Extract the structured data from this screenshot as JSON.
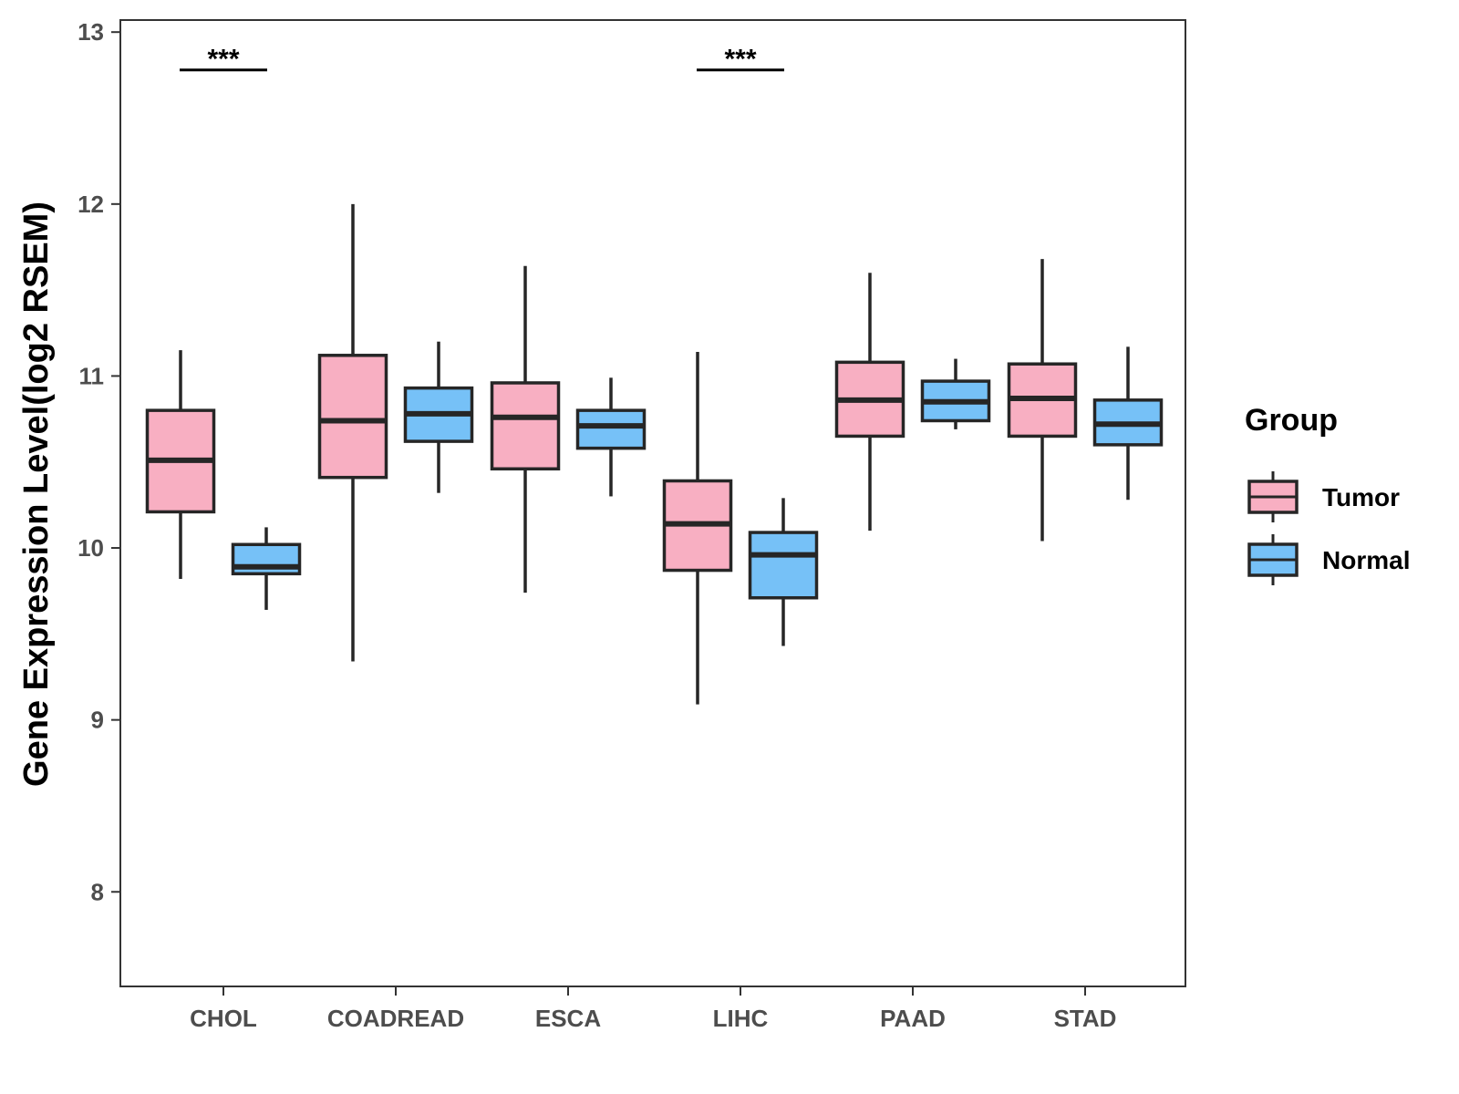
{
  "chart_data": {
    "type": "boxplot",
    "title": "",
    "xlabel": "",
    "ylabel": "Gene Expression Level(log2 RSEM)",
    "ylim": [
      7.45,
      13.07
    ],
    "yticks": [
      8,
      9,
      10,
      11,
      12,
      13
    ],
    "grid": false,
    "legend_position": "right",
    "categories": [
      "CHOL",
      "COADREAD",
      "ESCA",
      "LIHC",
      "PAAD",
      "STAD"
    ],
    "series": [
      {
        "name": "Tumor",
        "color": "#f8afc2",
        "boxes": [
          {
            "min": 9.82,
            "q1": 10.21,
            "median": 10.51,
            "q3": 10.8,
            "max": 11.15
          },
          {
            "min": 9.34,
            "q1": 10.41,
            "median": 10.74,
            "q3": 11.12,
            "max": 12.0
          },
          {
            "min": 9.74,
            "q1": 10.46,
            "median": 10.76,
            "q3": 10.96,
            "max": 11.64
          },
          {
            "min": 9.09,
            "q1": 9.87,
            "median": 10.14,
            "q3": 10.39,
            "max": 11.14
          },
          {
            "min": 10.1,
            "q1": 10.65,
            "median": 10.86,
            "q3": 11.08,
            "max": 11.6
          },
          {
            "min": 10.04,
            "q1": 10.65,
            "median": 10.87,
            "q3": 11.07,
            "max": 11.68
          }
        ]
      },
      {
        "name": "Normal",
        "color": "#76c1f7",
        "boxes": [
          {
            "min": 9.64,
            "q1": 9.85,
            "median": 9.89,
            "q3": 10.02,
            "max": 10.12
          },
          {
            "min": 10.32,
            "q1": 10.62,
            "median": 10.78,
            "q3": 10.93,
            "max": 11.2
          },
          {
            "min": 10.3,
            "q1": 10.58,
            "median": 10.71,
            "q3": 10.8,
            "max": 10.99
          },
          {
            "min": 9.43,
            "q1": 9.71,
            "median": 9.96,
            "q3": 10.09,
            "max": 10.29
          },
          {
            "min": 10.69,
            "q1": 10.74,
            "median": 10.85,
            "q3": 10.97,
            "max": 11.1
          },
          {
            "min": 10.28,
            "q1": 10.6,
            "median": 10.72,
            "q3": 10.86,
            "max": 11.17
          }
        ]
      }
    ],
    "significance": [
      {
        "category": "CHOL",
        "label": "***",
        "y": 12.78
      },
      {
        "category": "LIHC",
        "label": "***",
        "y": 12.78
      }
    ],
    "legend": {
      "title": "Group",
      "items": [
        "Tumor",
        "Normal"
      ]
    },
    "colors": {
      "outline": "#262626",
      "axis": "#333333",
      "tick_text": "#4d4d4d"
    }
  }
}
